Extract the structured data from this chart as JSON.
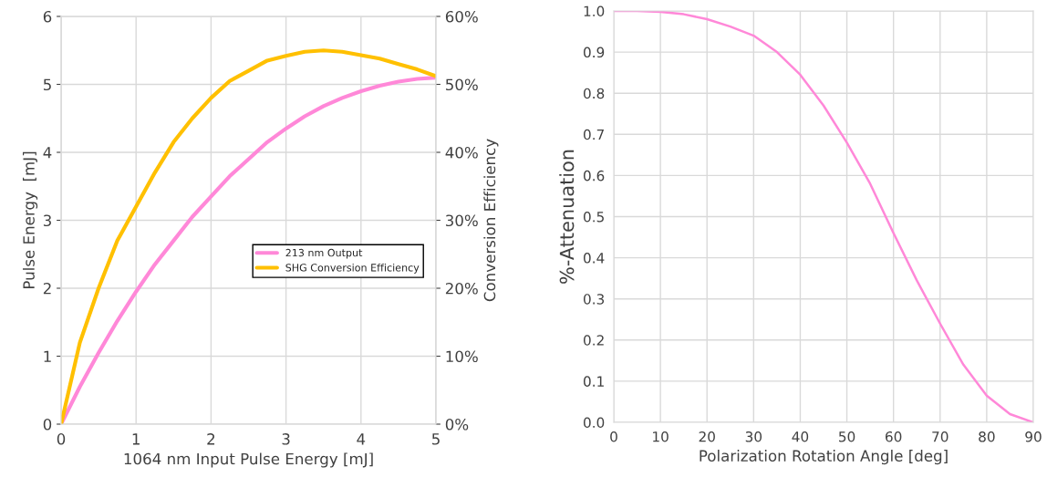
{
  "chart_data": [
    {
      "type": "line",
      "xlabel": "1064 nm Input Pulse Energy [mJ]",
      "ylabel": "Pulse Energy  [mJ]",
      "y2label": "Conversion Efficiency",
      "xlim": [
        0,
        5
      ],
      "xticks": [
        0,
        1,
        2,
        3,
        4,
        5
      ],
      "ylim": [
        0,
        6
      ],
      "yticks": [
        0,
        1,
        2,
        3,
        4,
        5,
        6
      ],
      "y2lim": [
        0,
        60
      ],
      "y2ticks": [
        {
          "value": 0,
          "label": "0%"
        },
        {
          "value": 10,
          "label": "10%"
        },
        {
          "value": 20,
          "label": "20%"
        },
        {
          "value": 30,
          "label": "30%"
        },
        {
          "value": 40,
          "label": "40%"
        },
        {
          "value": 50,
          "label": "50%"
        },
        {
          "value": 60,
          "label": "60%"
        }
      ],
      "grid": true,
      "legend": "right",
      "line_style": "solid",
      "x": [
        0,
        0.25,
        0.5,
        0.75,
        1,
        1.25,
        1.5,
        1.75,
        2,
        2.25,
        2.5,
        2.75,
        3,
        3.25,
        3.5,
        3.75,
        4,
        4.25,
        4.5,
        4.75,
        5
      ],
      "series": [
        {
          "name": "213 nm Output",
          "color": "#ff88d8",
          "values": [
            0,
            0.55,
            1.05,
            1.52,
            1.95,
            2.35,
            2.7,
            3.05,
            3.35,
            3.65,
            3.9,
            4.15,
            4.35,
            4.53,
            4.68,
            4.8,
            4.9,
            4.98,
            5.04,
            5.08,
            5.1
          ]
        },
        {
          "name": "SHG Conversion Efficiency",
          "color": "#ffc000",
          "axis": "y2",
          "values": [
            0,
            12,
            20,
            27,
            32,
            37,
            41.5,
            45,
            48,
            50.5,
            52,
            53.5,
            54.2,
            54.8,
            55,
            54.8,
            54.3,
            53.8,
            53,
            52.2,
            51.2
          ]
        }
      ]
    },
    {
      "type": "line",
      "xlabel": "Polarization Rotation Angle [deg]",
      "ylabel": "%-Attenuation",
      "xlim": [
        0,
        90
      ],
      "xticks": [
        0,
        10,
        20,
        30,
        40,
        50,
        60,
        70,
        80,
        90
      ],
      "ylim": [
        0,
        1
      ],
      "yticks": [
        {
          "value": 0,
          "label": "0.0"
        },
        0.1,
        0.2,
        0.3,
        0.4,
        0.5,
        0.6,
        0.7,
        0.8,
        0.9,
        {
          "value": 1,
          "label": "1.0"
        }
      ],
      "grid": true,
      "line_style": "solid",
      "x": [
        0,
        5,
        10,
        15,
        20,
        25,
        30,
        35,
        40,
        45,
        50,
        55,
        60,
        65,
        70,
        75,
        80,
        85,
        90
      ],
      "series": [
        {
          "color": "#ff88d8",
          "values": [
            1.0,
            1.0,
            0.998,
            0.992,
            0.98,
            0.962,
            0.94,
            0.9,
            0.845,
            0.77,
            0.68,
            0.58,
            0.46,
            0.345,
            0.24,
            0.14,
            0.065,
            0.02,
            0.0
          ]
        }
      ]
    }
  ]
}
